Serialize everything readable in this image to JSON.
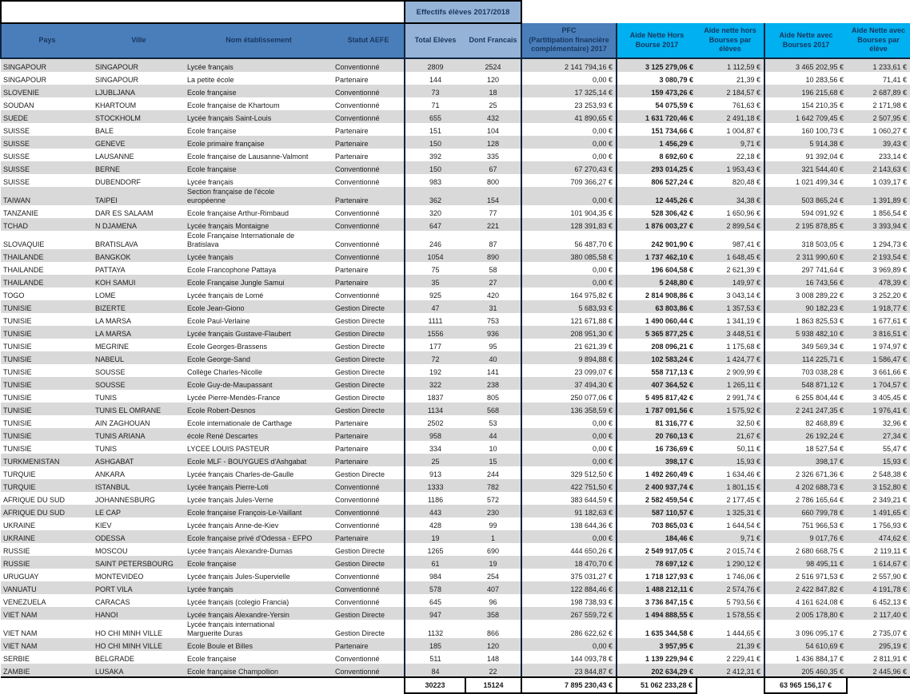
{
  "colors": {
    "header_blue": "#4A7EBB",
    "header_light_blue": "#95B3D7",
    "header_cyan": "#00B0F0",
    "stripe_gray": "#D9D9D9",
    "header_text": "#17375E",
    "group_border": "#0F243E"
  },
  "table": {
    "effectifs_label": "Effectifs élèves 2017/2018",
    "columns": [
      "Pays",
      "Ville",
      "Nom établissement",
      "Statut AEFE",
      "Total Elèves",
      "Dont Francais",
      "PFC\n(Partitipation financière complémentaire) 2017",
      "Aide Nette Hors Bourse 2017",
      "Aide nette hors Bourses par élèves",
      "Aide Nette avec Bourses 2017",
      "Aide Nette avec Bourses par élève"
    ],
    "rows": [
      [
        "SINGAPOUR",
        "SINGAPOUR",
        "Lycée français",
        "Conventionné",
        "2809",
        "2524",
        "2 141 794,16 €",
        "3 125 279,06 €",
        "1 112,59 €",
        "3 465 202,95 €",
        "1 233,61 €"
      ],
      [
        "SINGAPOUR",
        "SINGAPOUR",
        "La petite école",
        "Partenaire",
        "144",
        "120",
        "0,00 €",
        "3 080,79 €",
        "21,39 €",
        "10 283,56 €",
        "71,41 €"
      ],
      [
        "SLOVENIE",
        "LJUBLJANA",
        "Ecole française",
        "Conventionné",
        "73",
        "18",
        "17 325,14 €",
        "159 473,26 €",
        "2 184,57 €",
        "196 215,68 €",
        "2 687,89 €"
      ],
      [
        "SOUDAN",
        "KHARTOUM",
        "Ecole française de Khartoum",
        "Conventionné",
        "71",
        "25",
        "23 253,93 €",
        "54 075,59 €",
        "761,63 €",
        "154 210,35 €",
        "2 171,98 €"
      ],
      [
        "SUEDE",
        "STOCKHOLM",
        "Lycée français Saint-Louis",
        "Conventionné",
        "655",
        "432",
        "41 890,65 €",
        "1 631 720,46 €",
        "2 491,18 €",
        "1 642 709,45 €",
        "2 507,95 €"
      ],
      [
        "SUISSE",
        "BALE",
        "Ecole française",
        "Partenaire",
        "151",
        "104",
        "0,00 €",
        "151 734,66 €",
        "1 004,87 €",
        "160 100,73 €",
        "1 060,27 €"
      ],
      [
        "SUISSE",
        "GENEVE",
        "Ecole primaire française",
        "Partenaire",
        "150",
        "128",
        "0,00 €",
        "1 456,29 €",
        "9,71 €",
        "5 914,38 €",
        "39,43 €"
      ],
      [
        "SUISSE",
        "LAUSANNE",
        "Ecole française de Lausanne-Valmont",
        "Partenaire",
        "392",
        "335",
        "0,00 €",
        "8 692,60 €",
        "22,18 €",
        "91 392,04 €",
        "233,14 €"
      ],
      [
        "SUISSE",
        "BERNE",
        "Ecole française",
        "Conventionné",
        "150",
        "67",
        "67 270,43 €",
        "293 014,25 €",
        "1 953,43 €",
        "321 544,40 €",
        "2 143,63 €"
      ],
      [
        "SUISSE",
        "DUBENDORF",
        "Lycée français",
        "Conventionné",
        "983",
        "800",
        "709 366,27 €",
        "806 527,24 €",
        "820,48 €",
        "1 021 499,34 €",
        "1 039,17 €"
      ],
      [
        "TAIWAN",
        "TAIPEI",
        "Section française de l'école\neuropéenne",
        "Partenaire",
        "362",
        "154",
        "0,00 €",
        "12 445,26 €",
        "34,38 €",
        "503 865,24 €",
        "1 391,89 €"
      ],
      [
        "TANZANIE",
        "DAR ES SALAAM",
        "Ecole française Arthur-Rimbaud",
        "Conventionné",
        "320",
        "77",
        "101 904,35 €",
        "528 306,42 €",
        "1 650,96 €",
        "594 091,92 €",
        "1 856,54 €"
      ],
      [
        "TCHAD",
        "N DJAMENA",
        "Lycée français Montaigne",
        "Conventionné",
        "647",
        "221",
        "128 391,83 €",
        "1 876 003,27 €",
        "2 899,54 €",
        "2 195 878,85 €",
        "3 393,94 €"
      ],
      [
        "SLOVAQUIE",
        "BRATISLAVA",
        "Ecole Française Internationale de\nBratislava",
        "Conventionné",
        "246",
        "87",
        "56 487,70 €",
        "242 901,90 €",
        "987,41 €",
        "318 503,05 €",
        "1 294,73 €"
      ],
      [
        "THAILANDE",
        "BANGKOK",
        "Lycée français",
        "Conventionné",
        "1054",
        "890",
        "380 085,58 €",
        "1 737 462,10 €",
        "1 648,45 €",
        "2 311 990,60 €",
        "2 193,54 €"
      ],
      [
        "THAILANDE",
        "PATTAYA",
        "Ecole Francophone Pattaya",
        "Partenaire",
        "75",
        "58",
        "0,00 €",
        "196 604,58 €",
        "2 621,39 €",
        "297 741,64 €",
        "3 969,89 €"
      ],
      [
        "THAILANDE",
        "KOH SAMUI",
        "Ecole Française Jungle Samui",
        "Partenaire",
        "35",
        "27",
        "0,00 €",
        "5 248,80 €",
        "149,97 €",
        "16 743,56 €",
        "478,39 €"
      ],
      [
        "TOGO",
        "LOME",
        "Lycée français de Lomé",
        "Conventionné",
        "925",
        "420",
        "164 975,82 €",
        "2 814 908,86 €",
        "3 043,14 €",
        "3 008 289,22 €",
        "3 252,20 €"
      ],
      [
        "TUNISIE",
        "BIZERTE",
        "Ecole Jean-Giono",
        "Gestion Directe",
        "47",
        "31",
        "5 683,93 €",
        "63 803,86 €",
        "1 357,53 €",
        "90 182,23 €",
        "1 918,77 €"
      ],
      [
        "TUNISIE",
        "LA MARSA",
        "Ecole Paul-Verlaine",
        "Gestion Directe",
        "1111",
        "753",
        "121 671,88 €",
        "1 490 060,44 €",
        "1 341,19 €",
        "1 863 825,53 €",
        "1 677,61 €"
      ],
      [
        "TUNISIE",
        "LA MARSA",
        "Lycée français Gustave-Flaubert",
        "Gestion Directe",
        "1556",
        "936",
        "208 951,30 €",
        "5 365 877,25 €",
        "3 448,51 €",
        "5 938 482,10 €",
        "3 816,51 €"
      ],
      [
        "TUNISIE",
        "MEGRINE",
        "Ecole Georges-Brassens",
        "Gestion Directe",
        "177",
        "95",
        "21 621,39 €",
        "208 096,21 €",
        "1 175,68 €",
        "349 569,34 €",
        "1 974,97 €"
      ],
      [
        "TUNISIE",
        "NABEUL",
        "Ecole George-Sand",
        "Gestion Directe",
        "72",
        "40",
        "9 894,88 €",
        "102 583,24 €",
        "1 424,77 €",
        "114 225,71 €",
        "1 586,47 €"
      ],
      [
        "TUNISIE",
        "SOUSSE",
        "Collège Charles-Nicolle",
        "Gestion Directe",
        "192",
        "141",
        "23 099,07 €",
        "558 717,13 €",
        "2 909,99 €",
        "703 038,28 €",
        "3 661,66 €"
      ],
      [
        "TUNISIE",
        "SOUSSE",
        "Ecole Guy-de-Maupassant",
        "Gestion Directe",
        "322",
        "238",
        "37 494,30 €",
        "407 364,52 €",
        "1 265,11 €",
        "548 871,12 €",
        "1 704,57 €"
      ],
      [
        "TUNISIE",
        "TUNIS",
        "Lycée Pierre-Mendès-France",
        "Gestion Directe",
        "1837",
        "805",
        "250 077,06 €",
        "5 495 817,42 €",
        "2 991,74 €",
        "6 255 804,44 €",
        "3 405,45 €"
      ],
      [
        "TUNISIE",
        "TUNIS EL OMRANE",
        "Ecole Robert-Desnos",
        "Gestion Directe",
        "1134",
        "568",
        "136 358,59 €",
        "1 787 091,56 €",
        "1 575,92 €",
        "2 241 247,35 €",
        "1 976,41 €"
      ],
      [
        "TUNISIE",
        "AIN ZAGHOUAN",
        "Ecole internationale de Carthage",
        "Partenaire",
        "2502",
        "53",
        "0,00 €",
        "81 316,77 €",
        "32,50 €",
        "82 468,89 €",
        "32,96 €"
      ],
      [
        "TUNISIE",
        "TUNIS ARIANA",
        "école René Descartes",
        "Partenaire",
        "958",
        "44",
        "0,00 €",
        "20 760,13 €",
        "21,67 €",
        "26 192,24 €",
        "27,34 €"
      ],
      [
        "TUNISIE",
        "TUNIS",
        "LYCEE LOUIS PASTEUR",
        "Partenaire",
        "334",
        "10",
        "0,00 €",
        "16 736,69 €",
        "50,11 €",
        "18 527,54 €",
        "55,47 €"
      ],
      [
        "TURKMENISTAN",
        "ASHGABAT",
        "Ecole MLF - BOUYGUES d'Ashgabat",
        "Partenaire",
        "25",
        "15",
        "0,00 €",
        "398,17 €",
        "15,93 €",
        "398,17 €",
        "15,93 €"
      ],
      [
        "TURQUIE",
        "ANKARA",
        "Lycée français Charles-de-Gaulle",
        "Gestion Directe",
        "913",
        "244",
        "329 512,50 €",
        "1 492 260,49 €",
        "1 634,46 €",
        "2 326 671,36 €",
        "2 548,38 €"
      ],
      [
        "TURQUIE",
        "ISTANBUL",
        "Lycée français Pierre-Loti",
        "Conventionné",
        "1333",
        "782",
        "422 751,50 €",
        "2 400 937,74 €",
        "1 801,15 €",
        "4 202 688,73 €",
        "3 152,80 €"
      ],
      [
        "AFRIQUE DU SUD",
        "JOHANNESBURG",
        "Lycée français Jules-Verne",
        "Conventionné",
        "1186",
        "572",
        "383 644,59 €",
        "2 582 459,54 €",
        "2 177,45 €",
        "2 786 165,64 €",
        "2 349,21 €"
      ],
      [
        "AFRIQUE DU SUD",
        "LE CAP",
        "Ecole française François-Le-Vaillant",
        "Conventionné",
        "443",
        "230",
        "91 182,63 €",
        "587 110,57 €",
        "1 325,31 €",
        "660 799,78 €",
        "1 491,65 €"
      ],
      [
        "UKRAINE",
        "KIEV",
        "Lycée français Anne-de-Kiev",
        "Conventionné",
        "428",
        "99",
        "138 644,36 €",
        "703 865,03 €",
        "1 644,54 €",
        "751 966,53 €",
        "1 756,93 €"
      ],
      [
        "UKRAINE",
        "ODESSA",
        "Ecole française privé d'Odessa - EFPO",
        "Partenaire",
        "19",
        "1",
        "0,00 €",
        "184,46 €",
        "9,71 €",
        "9 017,76 €",
        "474,62 €"
      ],
      [
        "RUSSIE",
        "MOSCOU",
        "Lycée français Alexandre-Dumas",
        "Gestion Directe",
        "1265",
        "690",
        "444 650,26 €",
        "2 549 917,05 €",
        "2 015,74 €",
        "2 680 668,75 €",
        "2 119,11 €"
      ],
      [
        "RUSSIE",
        "SAINT PETERSBOURG",
        "Ecole française",
        "Gestion Directe",
        "61",
        "19",
        "18 470,70 €",
        "78 697,12 €",
        "1 290,12 €",
        "98 495,11 €",
        "1 614,67 €"
      ],
      [
        "URUGUAY",
        "MONTEVIDEO",
        "Lycée français Jules-Supervielle",
        "Conventionné",
        "984",
        "254",
        "375 031,27 €",
        "1 718 127,93 €",
        "1 746,06 €",
        "2 516 971,53 €",
        "2 557,90 €"
      ],
      [
        "VANUATU",
        "PORT VILA",
        "Lycée français",
        "Conventionné",
        "578",
        "407",
        "122 884,46 €",
        "1 488 212,11 €",
        "2 574,76 €",
        "2 422 847,82 €",
        "4 191,78 €"
      ],
      [
        "VENEZUELA",
        "CARACAS",
        "Lycée français (colegio Francia)",
        "Conventionné",
        "645",
        "96",
        "198 738,93 €",
        "3 736 847,15 €",
        "5 793,56 €",
        "4 161 624,08 €",
        "6 452,13 €"
      ],
      [
        "VIET NAM",
        "HANOI",
        "Lycée français Alexandre-Yersin",
        "Gestion Directe",
        "947",
        "358",
        "267 559,72 €",
        "1 494 888,55 €",
        "1 578,55 €",
        "2 005 178,80 €",
        "2 117,40 €"
      ],
      [
        "VIET NAM",
        "HO CHI MINH VILLE",
        "Lycée français international\nMarguerite Duras",
        "Gestion Directe",
        "1132",
        "866",
        "286 622,62 €",
        "1 635 344,58 €",
        "1 444,65 €",
        "3 096 095,17 €",
        "2 735,07 €"
      ],
      [
        "VIET NAM",
        "HO CHI MINH VILLE",
        "Ecole Boule et Billes",
        "Partenaire",
        "185",
        "120",
        "0,00 €",
        "3 957,95 €",
        "21,39 €",
        "54 610,69 €",
        "295,19 €"
      ],
      [
        "SERBIE",
        "BELGRADE",
        "Ecole française",
        "Conventionné",
        "511",
        "148",
        "144 093,78 €",
        "1 139 229,94 €",
        "2 229,41 €",
        "1 436 884,17 €",
        "2 811,91 €"
      ],
      [
        "ZAMBIE",
        "LUSAKA",
        "Ecole française Champollion",
        "Conventionné",
        "84",
        "22",
        "23 844,87 €",
        "202 634,29 €",
        "2 412,31 €",
        "205 460,35 €",
        "2 445,96 €"
      ]
    ],
    "totals": {
      "total_eleves": "30223",
      "dont_francais": "15124",
      "pfc": "7 895 230,43 €",
      "aide_hors_bourse": "51 062 233,28 €",
      "aide_avec_bourses": "63 965 156,17 €"
    }
  }
}
